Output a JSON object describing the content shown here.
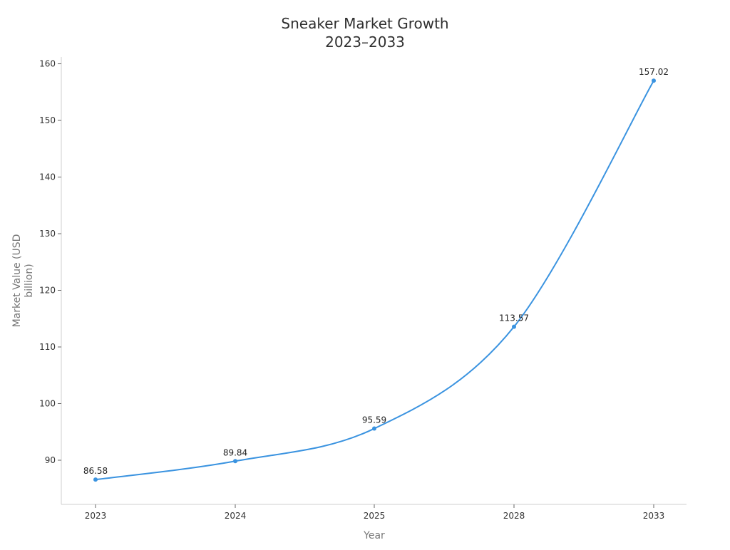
{
  "chart_data": {
    "type": "line",
    "title": "Sneaker Market Growth",
    "subtitle": "2023–2033",
    "xlabel": "Year",
    "ylabel": "Market Value (USD billion)",
    "categories": [
      "2023",
      "2024",
      "2025",
      "2028",
      "2033"
    ],
    "series": [
      {
        "values": [
          86.58,
          89.84,
          95.59,
          113.57,
          157.02
        ],
        "data_labels": [
          "86.58",
          "89.84",
          "95.59",
          "113.57",
          "157.02"
        ]
      }
    ],
    "ylim": [
      82.2,
      161.2
    ],
    "yticks": [
      90,
      100,
      110,
      120,
      130,
      140,
      150,
      160
    ],
    "grid": false,
    "legend": "none",
    "colors": {
      "series": "#3a93e0",
      "axis": "#cfcfcf",
      "text": "#333333"
    }
  }
}
